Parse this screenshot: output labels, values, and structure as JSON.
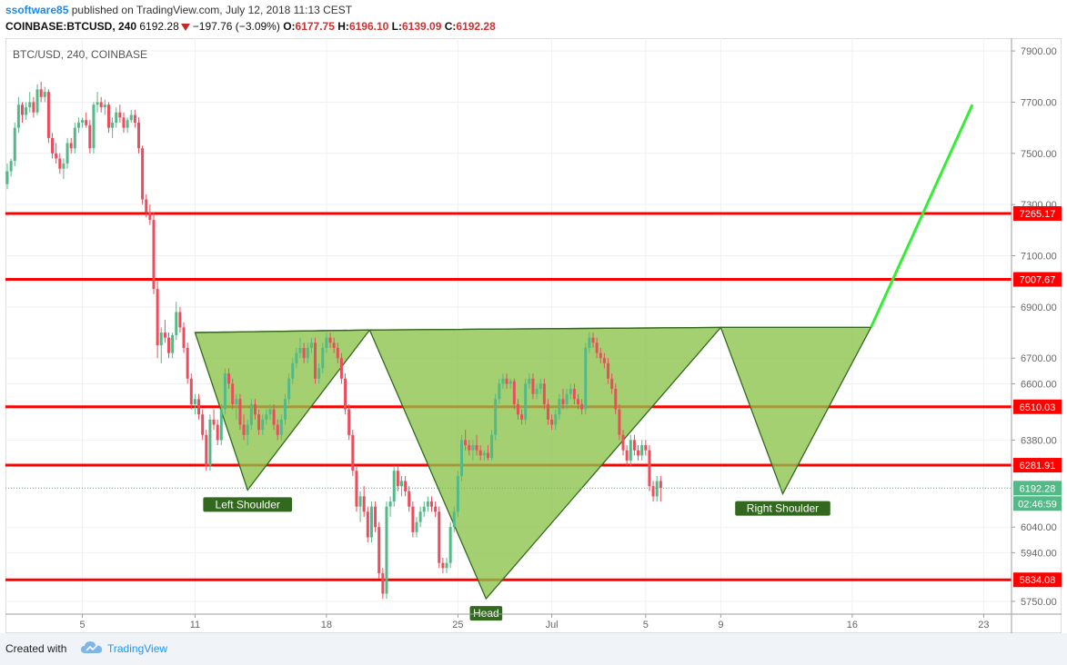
{
  "header": {
    "publisher": "ssoftware85",
    "published_text": "published on TradingView.com, July 12, 2018 11:13 CEST",
    "symbol": "COINBASE:BTCUSD, 240",
    "price": "6192.28",
    "change": "−197.76 (−3.09%)",
    "open_label": "O:",
    "open": "6177.75",
    "high_label": "H:",
    "high": "6196.10",
    "low_label": "L:",
    "low": "6139.09",
    "close_label": "C:",
    "close": "6192.28"
  },
  "footer": {
    "created_with": "Created with",
    "brand": "TradingView"
  },
  "chart_data": {
    "type": "candlestick",
    "legend": "BTC/USD, 240, COINBASE",
    "ylim": [
      5700,
      7950
    ],
    "y_ticks": [
      {
        "value": 7900,
        "label": "7900.00"
      },
      {
        "value": 7700,
        "label": "7700.00"
      },
      {
        "value": 7500,
        "label": "7500.00"
      },
      {
        "value": 7300,
        "label": "7300.00"
      },
      {
        "value": 7100,
        "label": "7100.00"
      },
      {
        "value": 6900,
        "label": "6900.00"
      },
      {
        "value": 6700,
        "label": "6700.00"
      },
      {
        "value": 6600,
        "label": "6600.00"
      },
      {
        "value": 6380,
        "label": "6380.00"
      },
      {
        "value": 6040,
        "label": "6040.00"
      },
      {
        "value": 5940,
        "label": "5940.00"
      },
      {
        "value": 5750,
        "label": "5750.00"
      }
    ],
    "x_ticks": [
      {
        "day": 5,
        "label": "5"
      },
      {
        "day": 11,
        "label": "11"
      },
      {
        "day": 18,
        "label": "18"
      },
      {
        "day": 25,
        "label": "25"
      },
      {
        "day": 30,
        "label": "Jul"
      },
      {
        "day": 35,
        "label": "5"
      },
      {
        "day": 39,
        "label": "9"
      },
      {
        "day": 46,
        "label": "16"
      },
      {
        "day": 53,
        "label": "23"
      }
    ],
    "x_range_days": [
      1.0,
      54.0
    ],
    "levels": [
      {
        "value": 7265.17,
        "label": "7265.17"
      },
      {
        "value": 7007.67,
        "label": "7007.67"
      },
      {
        "value": 6510.03,
        "label": "6510.03"
      },
      {
        "value": 6281.91,
        "label": "6281.91"
      },
      {
        "value": 5834.08,
        "label": "5834.08"
      }
    ],
    "last_price": {
      "value": 6192.28,
      "label": "6192.28",
      "countdown": "02:46:59"
    },
    "pattern": {
      "neckline": [
        [
          11.0,
          6800
        ],
        [
          20.3,
          6810
        ],
        [
          39.0,
          6820
        ],
        [
          47.0,
          6820
        ]
      ],
      "triangles": [
        [
          [
            11.0,
            6800
          ],
          [
            13.8,
            6185
          ],
          [
            20.3,
            6810
          ]
        ],
        [
          [
            20.3,
            6810
          ],
          [
            26.5,
            5760
          ],
          [
            39.0,
            6820
          ]
        ],
        [
          [
            39.0,
            6820
          ],
          [
            42.3,
            6170
          ],
          [
            47.0,
            6820
          ]
        ]
      ],
      "labels": [
        {
          "text": "Left Shoulder",
          "day": 13.8,
          "value": 6185
        },
        {
          "text": "Head",
          "day": 26.5,
          "value": 5760
        },
        {
          "text": "Right Shoulder",
          "day": 42.3,
          "value": 6170
        }
      ]
    },
    "projection": [
      [
        47.0,
        6820
      ],
      [
        52.4,
        7690
      ]
    ],
    "colors": {
      "up": "#53b987",
      "down": "#eb4d5c",
      "level": "#ff0000",
      "pattern_fill": "#8bc34a",
      "pattern_stroke": "#33691e",
      "label_bg": "#33691e",
      "projection": "#33ee33",
      "last_price": "#53b987"
    },
    "candles": [
      [
        1.0,
        7380,
        7460,
        7360,
        7430
      ],
      [
        1.2,
        7430,
        7480,
        7410,
        7470
      ],
      [
        1.4,
        7470,
        7620,
        7450,
        7600
      ],
      [
        1.6,
        7600,
        7720,
        7580,
        7690
      ],
      [
        1.8,
        7690,
        7700,
        7620,
        7650
      ],
      [
        2.0,
        7650,
        7700,
        7630,
        7680
      ],
      [
        2.2,
        7680,
        7740,
        7660,
        7700
      ],
      [
        2.4,
        7700,
        7720,
        7640,
        7660
      ],
      [
        2.6,
        7660,
        7770,
        7650,
        7750
      ],
      [
        2.8,
        7750,
        7780,
        7700,
        7720
      ],
      [
        3.0,
        7720,
        7760,
        7700,
        7740
      ],
      [
        3.2,
        7740,
        7750,
        7540,
        7560
      ],
      [
        3.4,
        7560,
        7580,
        7480,
        7500
      ],
      [
        3.6,
        7500,
        7540,
        7460,
        7480
      ],
      [
        3.8,
        7480,
        7500,
        7420,
        7440
      ],
      [
        4.0,
        7440,
        7480,
        7400,
        7460
      ],
      [
        4.2,
        7460,
        7560,
        7440,
        7540
      ],
      [
        4.4,
        7540,
        7560,
        7500,
        7520
      ],
      [
        4.6,
        7520,
        7620,
        7500,
        7600
      ],
      [
        4.8,
        7600,
        7640,
        7580,
        7620
      ],
      [
        5.0,
        7620,
        7640,
        7600,
        7630
      ],
      [
        5.2,
        7630,
        7660,
        7600,
        7610
      ],
      [
        5.4,
        7610,
        7630,
        7500,
        7520
      ],
      [
        5.6,
        7520,
        7700,
        7500,
        7690
      ],
      [
        5.8,
        7690,
        7740,
        7660,
        7700
      ],
      [
        6.0,
        7700,
        7720,
        7660,
        7680
      ],
      [
        6.2,
        7680,
        7710,
        7650,
        7690
      ],
      [
        6.4,
        7690,
        7700,
        7580,
        7600
      ],
      [
        6.6,
        7600,
        7640,
        7560,
        7620
      ],
      [
        6.8,
        7620,
        7680,
        7600,
        7660
      ],
      [
        7.0,
        7660,
        7690,
        7620,
        7640
      ],
      [
        7.2,
        7640,
        7660,
        7580,
        7600
      ],
      [
        7.4,
        7600,
        7640,
        7580,
        7630
      ],
      [
        7.6,
        7630,
        7670,
        7620,
        7650
      ],
      [
        7.8,
        7650,
        7670,
        7600,
        7620
      ],
      [
        8.0,
        7620,
        7640,
        7500,
        7520
      ],
      [
        8.2,
        7520,
        7530,
        7300,
        7320
      ],
      [
        8.4,
        7320,
        7340,
        7250,
        7270
      ],
      [
        8.6,
        7270,
        7300,
        7220,
        7240
      ],
      [
        8.8,
        7240,
        7270,
        6950,
        6970
      ],
      [
        9.0,
        6970,
        7000,
        6700,
        6750
      ],
      [
        9.2,
        6750,
        6820,
        6680,
        6800
      ],
      [
        9.4,
        6800,
        6850,
        6760,
        6780
      ],
      [
        9.6,
        6780,
        6800,
        6700,
        6720
      ],
      [
        9.8,
        6720,
        6800,
        6700,
        6790
      ],
      [
        10.0,
        6790,
        6920,
        6770,
        6880
      ],
      [
        10.2,
        6880,
        6900,
        6800,
        6820
      ],
      [
        10.4,
        6820,
        6840,
        6720,
        6740
      ],
      [
        10.6,
        6740,
        6760,
        6600,
        6620
      ],
      [
        10.8,
        6620,
        6640,
        6500,
        6520
      ],
      [
        11.0,
        6520,
        6560,
        6480,
        6540
      ],
      [
        11.2,
        6540,
        6560,
        6460,
        6480
      ],
      [
        11.4,
        6480,
        6500,
        6380,
        6400
      ],
      [
        11.6,
        6400,
        6420,
        6260,
        6280
      ],
      [
        11.8,
        6280,
        6480,
        6260,
        6460
      ],
      [
        12.0,
        6460,
        6500,
        6420,
        6440
      ],
      [
        12.2,
        6440,
        6460,
        6360,
        6380
      ],
      [
        12.4,
        6380,
        6520,
        6360,
        6500
      ],
      [
        12.6,
        6500,
        6660,
        6480,
        6640
      ],
      [
        12.8,
        6640,
        6660,
        6580,
        6600
      ],
      [
        13.0,
        6600,
        6620,
        6500,
        6520
      ],
      [
        13.2,
        6520,
        6560,
        6460,
        6540
      ],
      [
        13.4,
        6540,
        6560,
        6420,
        6440
      ],
      [
        13.6,
        6440,
        6480,
        6380,
        6400
      ],
      [
        13.8,
        6400,
        6460,
        6360,
        6440
      ],
      [
        14.0,
        6440,
        6540,
        6420,
        6520
      ],
      [
        14.2,
        6520,
        6540,
        6460,
        6480
      ],
      [
        14.4,
        6480,
        6500,
        6400,
        6420
      ],
      [
        14.6,
        6420,
        6480,
        6400,
        6460
      ],
      [
        14.8,
        6460,
        6500,
        6440,
        6480
      ],
      [
        15.0,
        6480,
        6520,
        6460,
        6500
      ],
      [
        15.2,
        6500,
        6520,
        6420,
        6440
      ],
      [
        15.4,
        6440,
        6460,
        6380,
        6400
      ],
      [
        15.6,
        6400,
        6480,
        6380,
        6460
      ],
      [
        15.8,
        6460,
        6560,
        6440,
        6540
      ],
      [
        16.0,
        6540,
        6640,
        6520,
        6620
      ],
      [
        16.2,
        6620,
        6700,
        6600,
        6680
      ],
      [
        16.4,
        6680,
        6740,
        6660,
        6720
      ],
      [
        16.6,
        6720,
        6780,
        6700,
        6740
      ],
      [
        16.8,
        6740,
        6760,
        6680,
        6700
      ],
      [
        17.0,
        6700,
        6760,
        6680,
        6740
      ],
      [
        17.2,
        6740,
        6780,
        6720,
        6760
      ],
      [
        17.4,
        6760,
        6780,
        6600,
        6620
      ],
      [
        17.6,
        6620,
        6680,
        6600,
        6660
      ],
      [
        17.8,
        6660,
        6760,
        6640,
        6740
      ],
      [
        18.0,
        6740,
        6800,
        6720,
        6780
      ],
      [
        18.2,
        6780,
        6800,
        6740,
        6760
      ],
      [
        18.4,
        6760,
        6780,
        6720,
        6740
      ],
      [
        18.6,
        6740,
        6760,
        6680,
        6700
      ],
      [
        18.8,
        6700,
        6720,
        6600,
        6620
      ],
      [
        19.0,
        6620,
        6640,
        6480,
        6500
      ],
      [
        19.2,
        6500,
        6520,
        6380,
        6400
      ],
      [
        19.4,
        6400,
        6420,
        6240,
        6260
      ],
      [
        19.6,
        6260,
        6280,
        6100,
        6120
      ],
      [
        19.8,
        6120,
        6180,
        6060,
        6160
      ],
      [
        20.0,
        6160,
        6200,
        6080,
        6100
      ],
      [
        20.2,
        6100,
        6120,
        5980,
        6000
      ],
      [
        20.4,
        6000,
        6140,
        5980,
        6120
      ],
      [
        20.6,
        6120,
        6140,
        6020,
        6040
      ],
      [
        20.8,
        6040,
        6060,
        5840,
        5860
      ],
      [
        21.0,
        5860,
        5880,
        5760,
        5780
      ],
      [
        21.2,
        5780,
        6140,
        5760,
        6120
      ],
      [
        21.4,
        6120,
        6160,
        6080,
        6140
      ],
      [
        21.6,
        6140,
        6280,
        6120,
        6260
      ],
      [
        21.8,
        6260,
        6280,
        6180,
        6200
      ],
      [
        22.0,
        6200,
        6240,
        6160,
        6220
      ],
      [
        22.2,
        6220,
        6240,
        6160,
        6180
      ],
      [
        22.4,
        6180,
        6200,
        6100,
        6120
      ],
      [
        22.6,
        6120,
        6140,
        6000,
        6020
      ],
      [
        22.8,
        6020,
        6080,
        6000,
        6060
      ],
      [
        23.0,
        6060,
        6120,
        6040,
        6100
      ],
      [
        23.2,
        6100,
        6140,
        6080,
        6120
      ],
      [
        23.4,
        6120,
        6160,
        6100,
        6140
      ],
      [
        23.6,
        6140,
        6160,
        6100,
        6120
      ],
      [
        23.8,
        6120,
        6140,
        6080,
        6100
      ],
      [
        24.0,
        6100,
        6120,
        5880,
        5900
      ],
      [
        24.2,
        5900,
        5920,
        5860,
        5880
      ],
      [
        24.4,
        5880,
        5920,
        5860,
        5900
      ],
      [
        24.6,
        5900,
        6060,
        5880,
        6040
      ],
      [
        24.8,
        6040,
        6120,
        6020,
        6100
      ],
      [
        25.0,
        6100,
        6260,
        6080,
        6240
      ],
      [
        25.2,
        6240,
        6400,
        6220,
        6380
      ],
      [
        25.4,
        6380,
        6420,
        6340,
        6360
      ],
      [
        25.6,
        6360,
        6380,
        6320,
        6340
      ],
      [
        25.8,
        6340,
        6380,
        6300,
        6360
      ],
      [
        26.0,
        6360,
        6400,
        6320,
        6340
      ],
      [
        26.2,
        6340,
        6360,
        6300,
        6320
      ],
      [
        26.4,
        6320,
        6340,
        6300,
        6330
      ],
      [
        26.6,
        6330,
        6360,
        6300,
        6310
      ],
      [
        26.8,
        6310,
        6420,
        6300,
        6400
      ],
      [
        27.0,
        6400,
        6560,
        6380,
        6540
      ],
      [
        27.2,
        6540,
        6620,
        6520,
        6600
      ],
      [
        27.4,
        6600,
        6640,
        6580,
        6620
      ],
      [
        27.6,
        6620,
        6640,
        6580,
        6600
      ],
      [
        27.8,
        6600,
        6620,
        6580,
        6610
      ],
      [
        28.0,
        6610,
        6620,
        6500,
        6520
      ],
      [
        28.2,
        6520,
        6540,
        6460,
        6480
      ],
      [
        28.4,
        6480,
        6500,
        6440,
        6460
      ],
      [
        28.6,
        6460,
        6620,
        6440,
        6600
      ],
      [
        28.8,
        6600,
        6640,
        6580,
        6620
      ],
      [
        29.0,
        6620,
        6640,
        6540,
        6560
      ],
      [
        29.2,
        6560,
        6600,
        6540,
        6580
      ],
      [
        29.4,
        6580,
        6620,
        6560,
        6600
      ],
      [
        29.6,
        6600,
        6620,
        6500,
        6520
      ],
      [
        29.8,
        6520,
        6540,
        6440,
        6460
      ],
      [
        30.0,
        6460,
        6480,
        6420,
        6440
      ],
      [
        30.2,
        6440,
        6500,
        6420,
        6480
      ],
      [
        30.4,
        6480,
        6560,
        6460,
        6540
      ],
      [
        30.6,
        6540,
        6580,
        6500,
        6520
      ],
      [
        30.8,
        6520,
        6580,
        6500,
        6560
      ],
      [
        31.0,
        6560,
        6600,
        6540,
        6580
      ],
      [
        31.2,
        6580,
        6600,
        6520,
        6540
      ],
      [
        31.4,
        6540,
        6560,
        6500,
        6520
      ],
      [
        31.6,
        6520,
        6540,
        6480,
        6500
      ],
      [
        31.8,
        6500,
        6760,
        6480,
        6740
      ],
      [
        32.0,
        6740,
        6800,
        6720,
        6780
      ],
      [
        32.2,
        6780,
        6800,
        6740,
        6760
      ],
      [
        32.4,
        6760,
        6780,
        6700,
        6720
      ],
      [
        32.6,
        6720,
        6740,
        6680,
        6700
      ],
      [
        32.8,
        6700,
        6720,
        6660,
        6680
      ],
      [
        33.0,
        6680,
        6700,
        6600,
        6620
      ],
      [
        33.2,
        6620,
        6640,
        6560,
        6580
      ],
      [
        33.4,
        6580,
        6600,
        6480,
        6500
      ],
      [
        33.6,
        6500,
        6520,
        6380,
        6400
      ],
      [
        33.8,
        6400,
        6420,
        6320,
        6340
      ],
      [
        34.0,
        6340,
        6360,
        6280,
        6300
      ],
      [
        34.2,
        6300,
        6400,
        6280,
        6380
      ],
      [
        34.4,
        6380,
        6400,
        6320,
        6340
      ],
      [
        34.6,
        6340,
        6360,
        6300,
        6320
      ],
      [
        34.8,
        6320,
        6380,
        6300,
        6360
      ],
      [
        35.0,
        6360,
        6380,
        6320,
        6340
      ],
      [
        35.2,
        6340,
        6360,
        6180,
        6200
      ],
      [
        35.4,
        6200,
        6220,
        6140,
        6160
      ],
      [
        35.6,
        6160,
        6240,
        6140,
        6220
      ],
      [
        35.8,
        6220,
        6240,
        6140,
        6192
      ]
    ]
  }
}
